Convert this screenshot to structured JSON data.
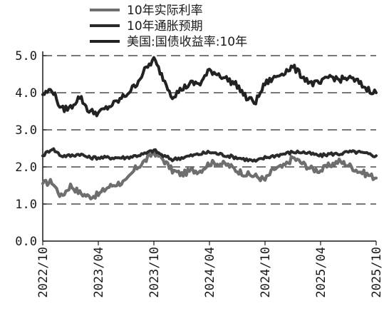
{
  "chart_data": {
    "type": "line",
    "xlabel": "",
    "ylabel": "",
    "ylim": [
      0,
      5
    ],
    "yticks": [
      "0.0",
      "1.0",
      "2.0",
      "3.0",
      "4.0",
      "5.0"
    ],
    "xlim": [
      "2022-10",
      "2025-10"
    ],
    "xticks": [
      "2022/10",
      "2023/04",
      "2023/10",
      "2024/04",
      "2024/10",
      "2025/04",
      "2025/10"
    ],
    "grid": "horizontal dashed",
    "legend": "top",
    "x": [
      "2022-10",
      "2022-11",
      "2022-12",
      "2023-01",
      "2023-02",
      "2023-03",
      "2023-04",
      "2023-05",
      "2023-06",
      "2023-07",
      "2023-08",
      "2023-09",
      "2023-10",
      "2023-11",
      "2023-12",
      "2024-01",
      "2024-02",
      "2024-03",
      "2024-04",
      "2024-05",
      "2024-06",
      "2024-07",
      "2024-08",
      "2024-09",
      "2024-10",
      "2024-11",
      "2024-12",
      "2025-01",
      "2025-02",
      "2025-03",
      "2025-04",
      "2025-05",
      "2025-06",
      "2025-07",
      "2025-08",
      "2025-09",
      "2025-10"
    ],
    "series": [
      {
        "name": "10年实际利率",
        "color": "#6e6e6e",
        "values": [
          1.55,
          1.6,
          1.2,
          1.5,
          1.3,
          1.2,
          1.25,
          1.45,
          1.55,
          1.6,
          1.95,
          2.15,
          2.4,
          2.2,
          1.9,
          1.8,
          1.9,
          1.9,
          2.1,
          2.1,
          2.05,
          1.9,
          1.8,
          1.75,
          1.65,
          1.95,
          2.0,
          2.25,
          2.1,
          1.95,
          1.9,
          2.05,
          2.15,
          2.05,
          1.9,
          1.8,
          1.7
        ]
      },
      {
        "name": "10年通胀预期",
        "color": "#2a2a2a",
        "values": [
          2.3,
          2.5,
          2.3,
          2.3,
          2.35,
          2.25,
          2.25,
          2.25,
          2.25,
          2.25,
          2.3,
          2.35,
          2.45,
          2.3,
          2.2,
          2.25,
          2.3,
          2.35,
          2.4,
          2.35,
          2.3,
          2.25,
          2.2,
          2.15,
          2.25,
          2.3,
          2.35,
          2.4,
          2.4,
          2.35,
          2.3,
          2.35,
          2.35,
          2.4,
          2.4,
          2.35,
          2.3
        ]
      },
      {
        "name": "美国:国债收益率:10年",
        "color": "#222222",
        "values": [
          3.95,
          4.1,
          3.55,
          3.6,
          3.9,
          3.5,
          3.45,
          3.6,
          3.75,
          3.95,
          4.2,
          4.6,
          4.9,
          4.4,
          3.9,
          4.1,
          4.25,
          4.25,
          4.6,
          4.5,
          4.35,
          4.2,
          3.85,
          3.75,
          4.25,
          4.4,
          4.55,
          4.7,
          4.45,
          4.25,
          4.25,
          4.45,
          4.35,
          4.4,
          4.3,
          4.1,
          4.0
        ]
      }
    ]
  }
}
